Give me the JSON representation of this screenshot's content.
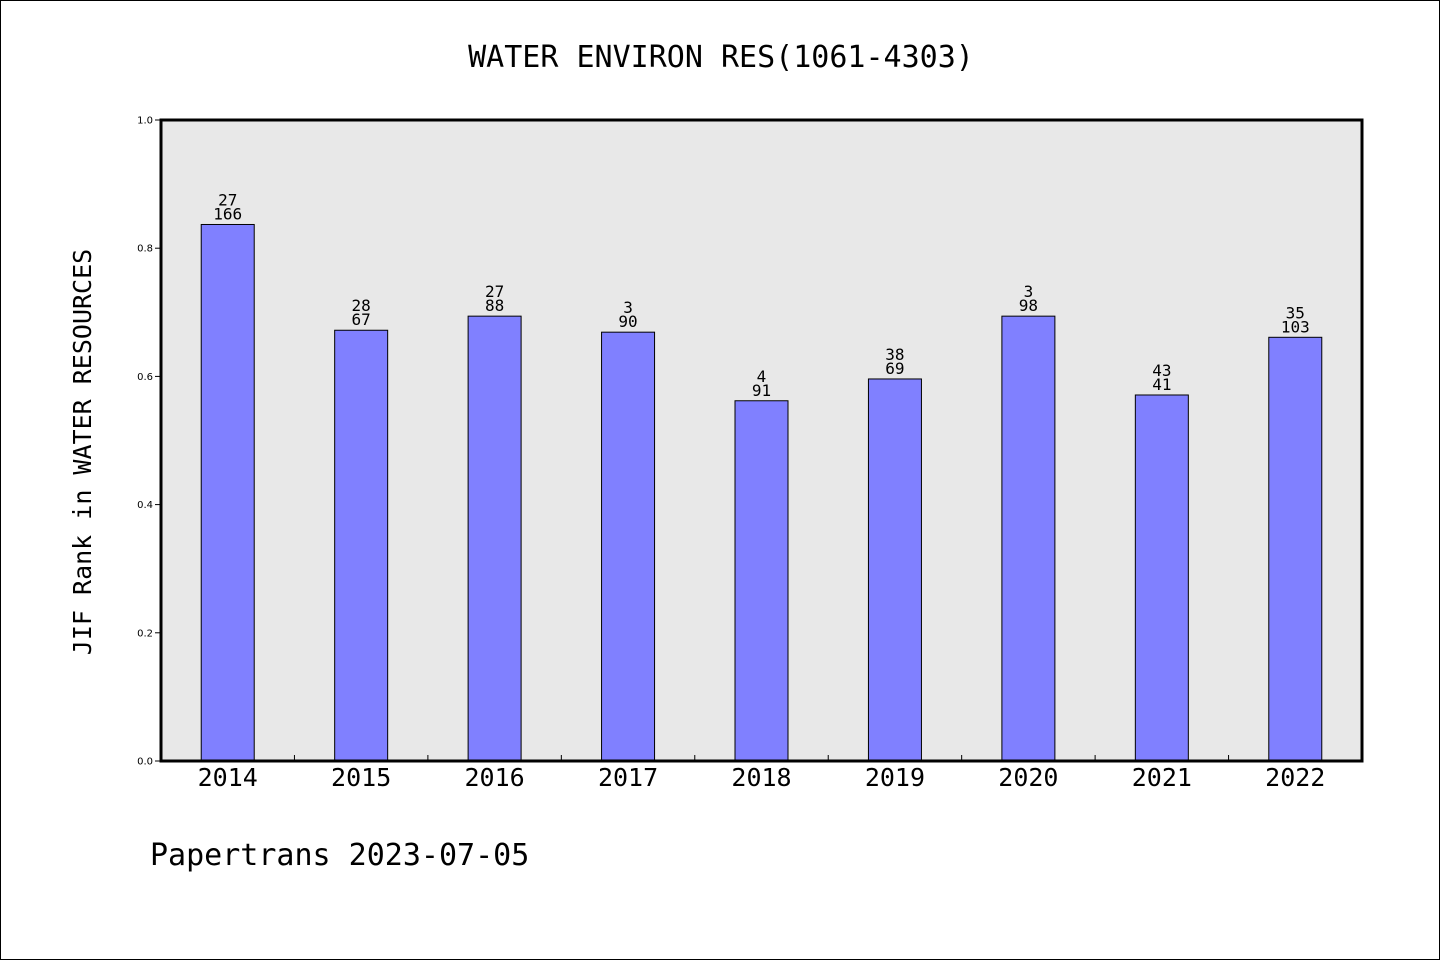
{
  "chart_data": {
    "type": "bar",
    "title": "WATER ENVIRON RES(1061-4303)",
    "ylabel": "JIF Rank in WATER RESOURCES",
    "xlabel": "",
    "categories": [
      "2014",
      "2015",
      "2016",
      "2017",
      "2018",
      "2019",
      "2020",
      "2021",
      "2022"
    ],
    "values": [
      0.837,
      0.672,
      0.694,
      0.669,
      0.562,
      0.596,
      0.694,
      0.571,
      0.661
    ],
    "labels_top": [
      "27",
      "28",
      "27",
      "3",
      "4",
      "38",
      "3",
      "43",
      "35"
    ],
    "labels_bottom": [
      "166",
      "67",
      "88",
      "90",
      "91",
      "69",
      "98",
      "41",
      "103"
    ],
    "ylim": [
      0,
      1.0
    ],
    "yticks": [
      "0.0",
      "0.2",
      "0.4",
      "0.6",
      "0.8",
      "1.0"
    ],
    "grid": false,
    "colors": {
      "bar_fill": "#8080ff",
      "bar_edge": "#000000",
      "plot_bg": "#e8e8e8"
    }
  },
  "footer": "Papertrans 2023-07-05"
}
